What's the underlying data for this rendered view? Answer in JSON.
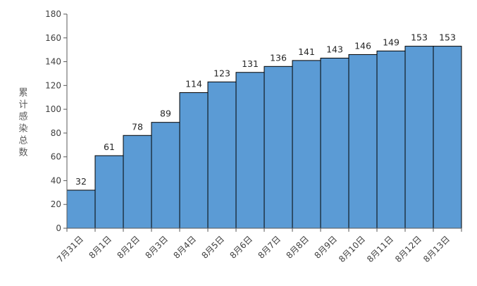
{
  "chart_data": {
    "type": "bar",
    "title": "",
    "xlabel": "",
    "ylabel": "累计感染总数",
    "categories": [
      "7月31日",
      "8月1日",
      "8月2日",
      "8月3日",
      "8月4日",
      "8月5日",
      "8月6日",
      "8月7日",
      "8月8日",
      "8月9日",
      "8月10日",
      "8月11日",
      "8月12日",
      "8月13日"
    ],
    "values": [
      32,
      61,
      78,
      89,
      114,
      123,
      131,
      136,
      141,
      143,
      146,
      149,
      153,
      153
    ],
    "ylim": [
      0,
      180
    ],
    "yticks": [
      0,
      20,
      40,
      60,
      80,
      100,
      120,
      140,
      160,
      180
    ],
    "grid": false,
    "legend": "none",
    "data_labels": true,
    "bar_color": "#5B9BD5",
    "bar_edge_color": "#000000"
  }
}
